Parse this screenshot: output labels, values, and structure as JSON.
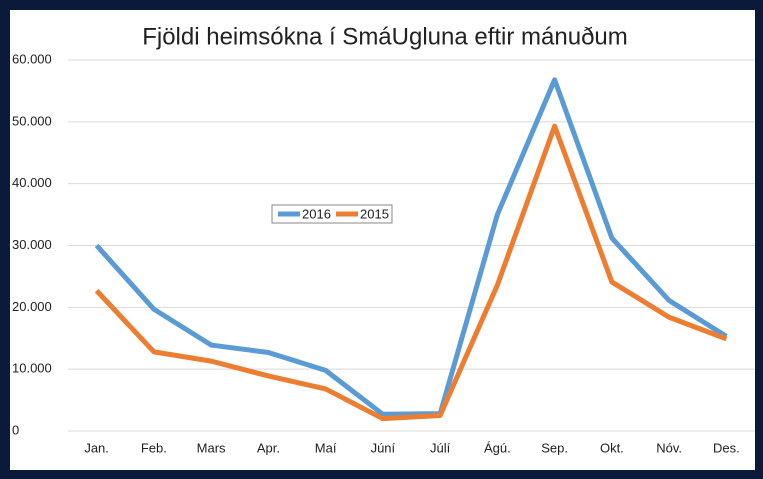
{
  "chart_data": {
    "type": "line",
    "title": "Fjöldi heimsókna í SmáUgluna eftir mánuðum",
    "categories": [
      "Jan.",
      "Feb.",
      "Mars",
      "Apr.",
      "Maí",
      "Júní",
      "Júlí",
      "Ágú.",
      "Sep.",
      "Okt.",
      "Nóv.",
      "Des."
    ],
    "series": [
      {
        "name": "2016",
        "color": "#5b9bd5",
        "values": [
          30000,
          19700,
          13900,
          12700,
          9800,
          2700,
          2800,
          35000,
          56800,
          31200,
          21100,
          15300
        ]
      },
      {
        "name": "2015",
        "color": "#ed7d31",
        "values": [
          22700,
          12800,
          11300,
          8900,
          6800,
          2000,
          2500,
          23600,
          49300,
          24100,
          18400,
          14900
        ]
      }
    ],
    "ylim": [
      0,
      60000
    ],
    "yticks": [
      0,
      {
        "value": 10000,
        "label": "10.000"
      },
      {
        "value": 20000,
        "label": "20.000"
      },
      {
        "value": 30000,
        "label": "30.000"
      },
      {
        "value": 40000,
        "label": "40.000"
      },
      {
        "value": 50000,
        "label": "50.000"
      },
      {
        "value": 60000,
        "label": "60.000"
      }
    ],
    "grid": true
  }
}
